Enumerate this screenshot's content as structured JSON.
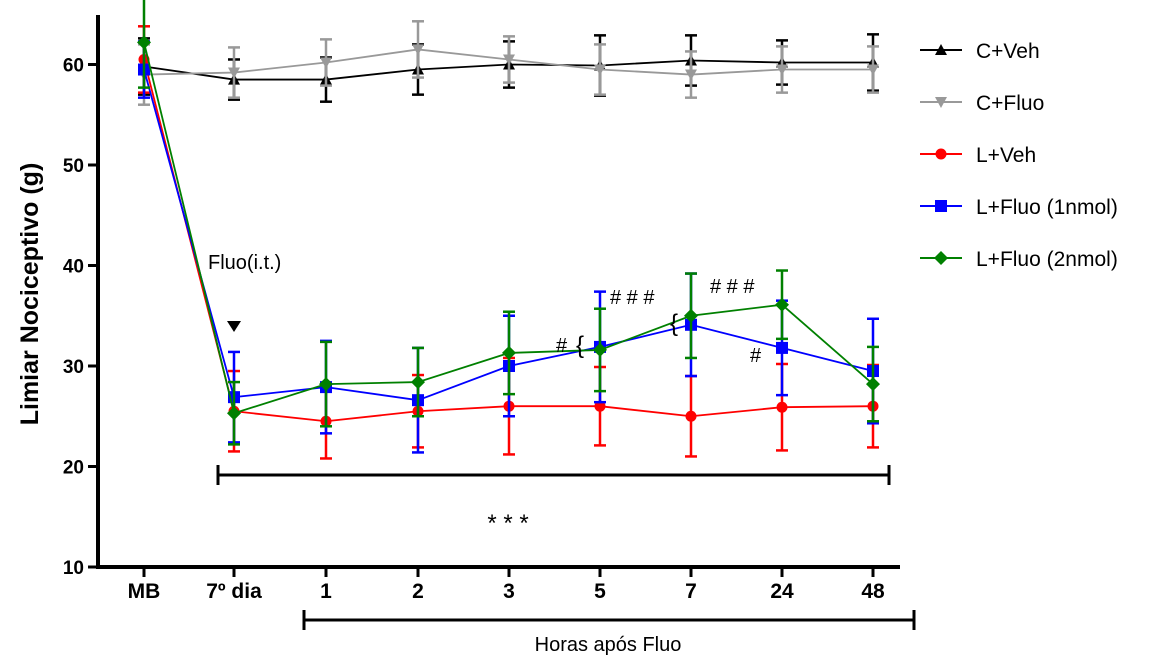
{
  "chart_data": {
    "type": "line",
    "ylabel": "Limiar Nociceptivo (g)",
    "xlabel": "Horas após Fluo",
    "ylim": [
      10,
      65
    ],
    "yticks": [
      "10",
      "20",
      "30",
      "40",
      "50",
      "60"
    ],
    "categories": [
      "MB",
      "7º dia",
      "1",
      "2",
      "3",
      "5",
      "7",
      "24",
      "48"
    ],
    "legend_position": "right",
    "series": [
      {
        "name": "C+Veh",
        "color": "#000000",
        "marker": "triangle-up",
        "values": [
          59.8,
          58.5,
          58.5,
          59.5,
          60.0,
          59.9,
          60.4,
          60.2,
          60.2
        ],
        "errors": [
          2.8,
          2.0,
          2.2,
          2.5,
          2.3,
          3.0,
          2.5,
          2.2,
          2.8
        ]
      },
      {
        "name": "C+Fluo",
        "color": "#999999",
        "marker": "triangle-down",
        "values": [
          59.0,
          59.2,
          60.2,
          61.5,
          60.5,
          59.5,
          59.0,
          59.5,
          59.5
        ],
        "errors": [
          3.0,
          2.5,
          2.3,
          2.8,
          2.3,
          2.5,
          2.3,
          2.3,
          2.3
        ]
      },
      {
        "name": "L+Veh",
        "color": "#ff0000",
        "marker": "circle",
        "values": [
          60.5,
          25.5,
          24.5,
          25.5,
          26.0,
          26.0,
          25.0,
          25.9,
          26.0
        ],
        "errors": [
          3.3,
          4.0,
          3.7,
          3.6,
          4.8,
          3.9,
          4.0,
          4.3,
          4.1
        ]
      },
      {
        "name": "L+Fluo (1nmol)",
        "color": "#0000ff",
        "marker": "square",
        "values": [
          59.5,
          26.9,
          27.9,
          26.6,
          30.0,
          31.9,
          34.1,
          31.8,
          29.5
        ],
        "errors": [
          2.8,
          4.5,
          4.6,
          5.2,
          5.0,
          5.5,
          5.1,
          4.7,
          5.2
        ]
      },
      {
        "name": "L+Fluo (2nmol)",
        "color": "#008000",
        "marker": "diamond",
        "values": [
          62.2,
          25.3,
          28.2,
          28.4,
          31.3,
          31.6,
          35.0,
          36.1,
          28.2
        ],
        "errors": [
          4.5,
          3.1,
          4.2,
          3.4,
          4.1,
          4.1,
          4.2,
          3.4,
          3.7
        ]
      }
    ],
    "annotations": {
      "fluo_label": "Fluo(i.t.)",
      "significance_main": "* * *",
      "hash_single_5h": "#",
      "hash_triple_5h": "# # #",
      "hash_triple_7h": "# # #",
      "hash_single_24h": "#",
      "brace_open": "{"
    }
  }
}
